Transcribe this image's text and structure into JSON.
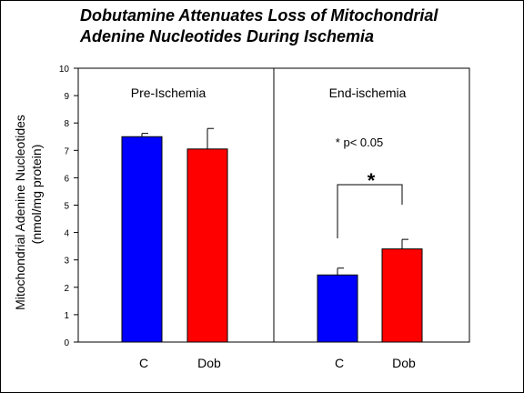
{
  "chart_data": {
    "type": "bar",
    "title_lines": [
      "Dobutamine Attenuates Loss of Mitochondrial",
      "Adenine Nucleotides During Ischemia"
    ],
    "ylabel_lines": [
      "Mitochondrial Adenine Nucleotides",
      "(nmol/mg protein)"
    ],
    "xlabel": "",
    "ylim": [
      0,
      10
    ],
    "yticks": [
      0,
      1,
      2,
      3,
      4,
      5,
      6,
      7,
      8,
      9,
      10
    ],
    "grid": false,
    "panels": [
      {
        "label": "Pre-Ischemia",
        "categories": [
          "C",
          "Dob"
        ],
        "values": [
          7.5,
          7.05
        ],
        "errors": [
          0.12,
          0.75
        ]
      },
      {
        "label": "End-ischemia",
        "categories": [
          "C",
          "Dob"
        ],
        "values": [
          2.45,
          3.4
        ],
        "errors": [
          0.25,
          0.35
        ]
      }
    ],
    "colors": [
      "#0000ff",
      "#ff0000"
    ],
    "annotations": {
      "p_value": "* p< 0.05",
      "significance_marker": "*"
    }
  }
}
